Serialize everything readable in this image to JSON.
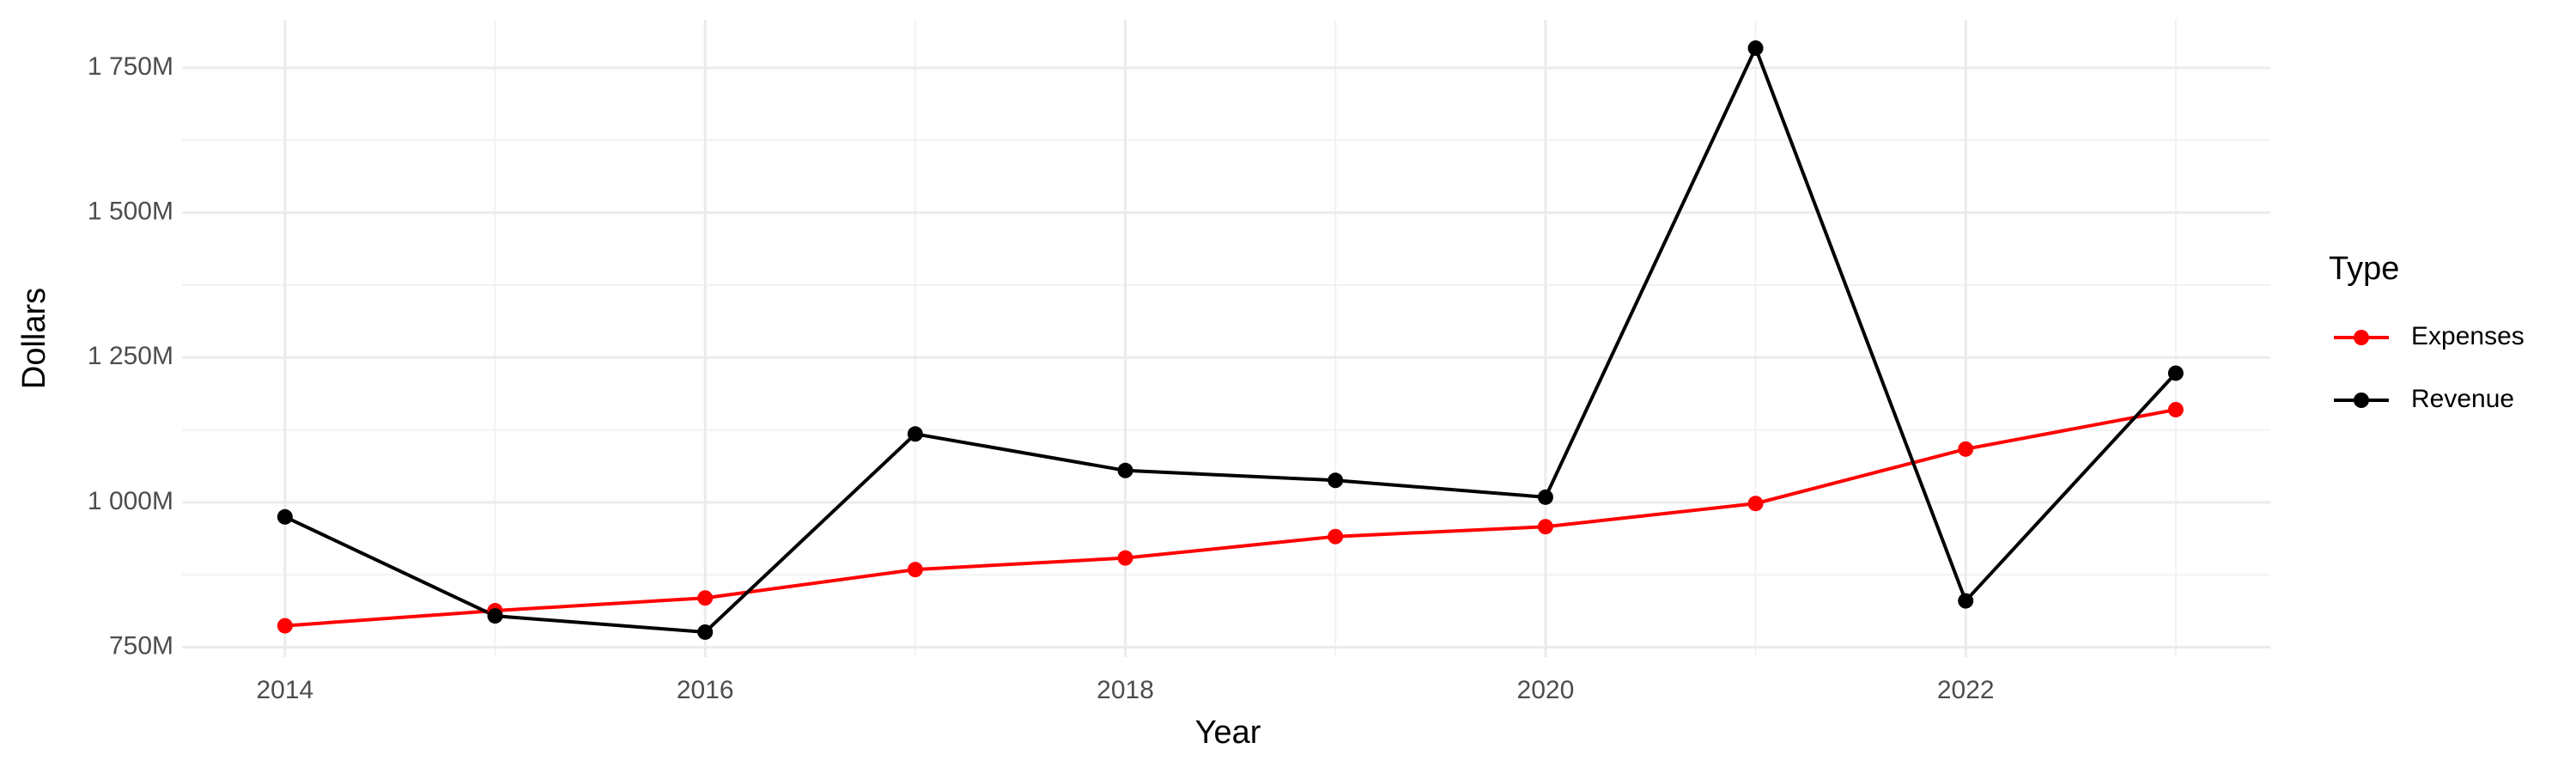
{
  "chart_data": {
    "type": "line",
    "x_label": "Year",
    "y_label": "Dollars",
    "legend_title": "Type",
    "x": [
      2014,
      2015,
      2016,
      2017,
      2018,
      2019,
      2020,
      2021,
      2022,
      2023
    ],
    "series": [
      {
        "name": "Expenses",
        "color": "#ff0000",
        "values": [
          787,
          813,
          835,
          884,
          904,
          941,
          958,
          998,
          1092,
          1160
        ]
      },
      {
        "name": "Revenue",
        "color": "#000000",
        "values": [
          975,
          804,
          776,
          1118,
          1055,
          1038,
          1009,
          1784,
          830,
          1223
        ]
      }
    ],
    "xlim": [
      2013.51,
      2023.45
    ],
    "xticks": [
      2014,
      2016,
      2018,
      2020,
      2022
    ],
    "ylim": [
      733,
      1833
    ],
    "yticks": [
      {
        "value": 750,
        "label": "750M"
      },
      {
        "value": 1000,
        "label": "1 000M"
      },
      {
        "value": 1250,
        "label": "1 250M"
      },
      {
        "value": 1500,
        "label": "1 500M"
      },
      {
        "value": 1750,
        "label": "1 750M"
      }
    ],
    "grid": true,
    "legend": "right"
  }
}
